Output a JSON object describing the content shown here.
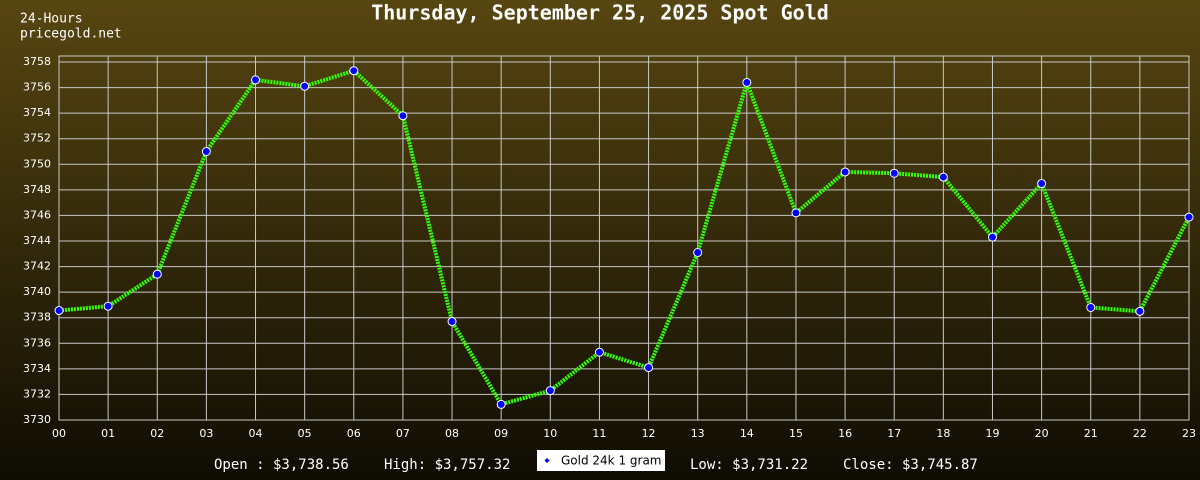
{
  "chart_data": {
    "type": "line",
    "title": "Thursday, September 25, 2025 Spot Gold",
    "corner_text": [
      "24-Hours",
      "pricegold.net"
    ],
    "categories": [
      "00",
      "01",
      "02",
      "03",
      "04",
      "05",
      "06",
      "07",
      "08",
      "09",
      "10",
      "11",
      "12",
      "13",
      "14",
      "15",
      "16",
      "17",
      "18",
      "19",
      "20",
      "21",
      "22",
      "23"
    ],
    "series": [
      {
        "name": "Gold 24k 1 gram",
        "color": "#33ff00",
        "marker_color": "#0000ff",
        "values": [
          3738.56,
          3738.9,
          3741.4,
          3751.0,
          3756.6,
          3756.1,
          3757.32,
          3753.8,
          3737.7,
          3731.22,
          3732.3,
          3735.3,
          3734.1,
          3743.1,
          3756.4,
          3746.2,
          3749.4,
          3749.3,
          3749.0,
          3744.3,
          3748.5,
          3738.8,
          3738.5,
          3745.87
        ]
      }
    ],
    "ylim": [
      3730,
      3758
    ],
    "yticks": [
      3730,
      3732,
      3734,
      3736,
      3738,
      3740,
      3742,
      3744,
      3746,
      3748,
      3750,
      3752,
      3754,
      3756,
      3758
    ],
    "grid": true,
    "stats_left": [
      "Open : $3,738.56",
      "High: $3,757.32"
    ],
    "stats_right": [
      "Low: $3,731.22",
      "Close: $3,745.87"
    ]
  }
}
